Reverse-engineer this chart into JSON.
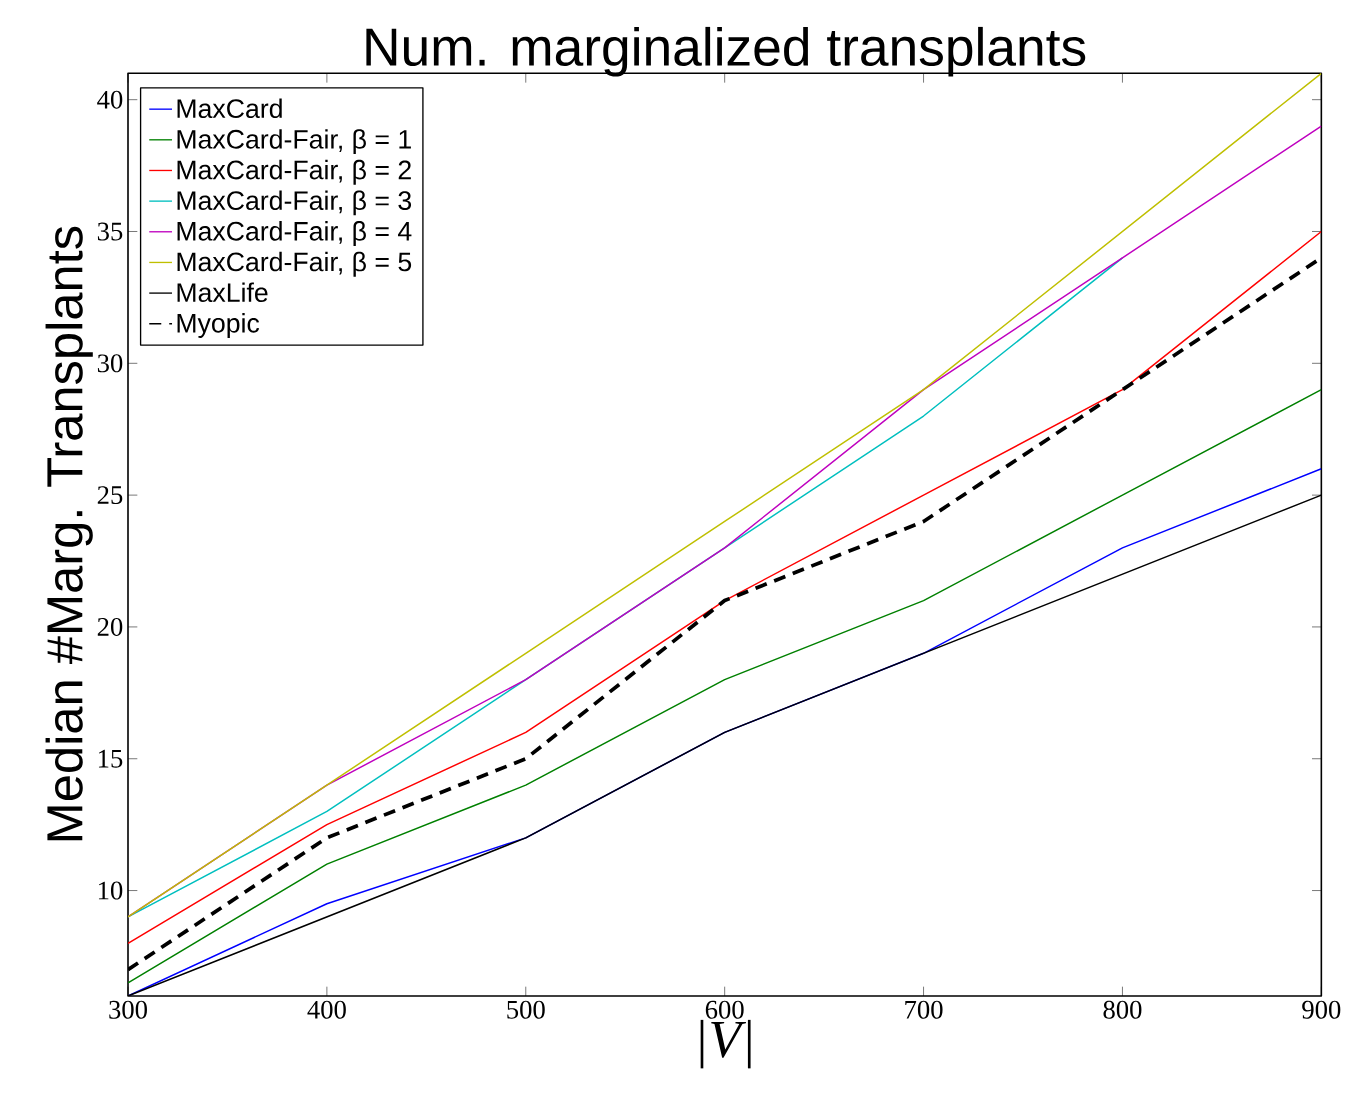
{
  "chart_data": {
    "type": "line",
    "title": "Num. marginalized transplants",
    "xlabel": "|V|",
    "ylabel": "Median #Marg. Transplants",
    "x": [
      300,
      400,
      500,
      600,
      700,
      800,
      900
    ],
    "xlim": [
      300,
      900
    ],
    "xticks": [
      300,
      400,
      500,
      600,
      700,
      800,
      900
    ],
    "ylim": [
      6,
      41
    ],
    "yticks": [
      10,
      15,
      20,
      25,
      30,
      35,
      40
    ],
    "legend": "top left",
    "grid": false,
    "marker": "none",
    "series": [
      {
        "name": "MaxCard",
        "color": "#0000ff",
        "values": [
          6,
          9.5,
          12,
          16,
          19,
          23,
          26
        ]
      },
      {
        "name": "MaxCard-Fair, β = 1",
        "color": "#008000",
        "values": [
          6.5,
          11,
          14,
          18,
          21,
          25,
          29
        ]
      },
      {
        "name": "MaxCard-Fair, β = 2",
        "color": "#ff0000",
        "values": [
          8,
          12.5,
          16,
          21,
          25,
          29,
          35
        ]
      },
      {
        "name": "MaxCard-Fair, β = 3",
        "color": "#00bfbf",
        "values": [
          9,
          13,
          18,
          23,
          28,
          34,
          null
        ]
      },
      {
        "name": "MaxCard-Fair, β = 4",
        "color": "#bf00bf",
        "values": [
          9,
          14,
          18,
          23,
          29,
          34,
          39
        ]
      },
      {
        "name": "MaxCard-Fair, β = 5",
        "color": "#bfbf00",
        "values": [
          9,
          14,
          19,
          24,
          29,
          35,
          41
        ]
      },
      {
        "name": "MaxLife",
        "color": "#000000",
        "values": [
          6,
          9,
          12,
          16,
          19,
          22,
          25
        ]
      },
      {
        "name": "Myopic",
        "color": "#000000",
        "line_style": "dashed",
        "values": [
          7,
          12,
          15,
          21,
          24,
          29,
          34
        ]
      }
    ]
  }
}
